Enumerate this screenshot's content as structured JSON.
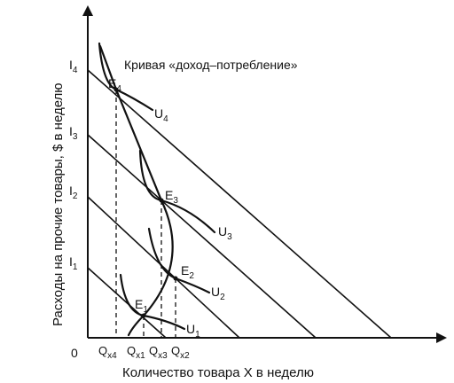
{
  "diagram": {
    "curve_label": "Кривая «доход–потребление»",
    "y_axis_label": "Расходы на прочие товары, $ в неделю",
    "x_axis_label": "Количество товара X в неделю",
    "origin_label": "0",
    "income_levels": [
      "I1",
      "I2",
      "I3",
      "I4"
    ],
    "equilibrium_points": [
      "E1",
      "E2",
      "E3",
      "E4"
    ],
    "indifference_curves": [
      "U1",
      "U2",
      "U3",
      "U4"
    ],
    "quantities": [
      "Qx4",
      "Qx1",
      "Qx3",
      "Qx2"
    ]
  }
}
